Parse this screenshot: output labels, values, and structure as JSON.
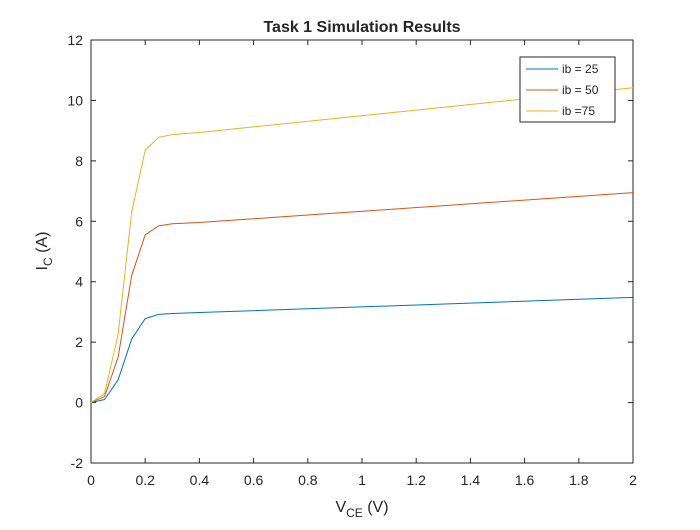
{
  "chart_data": {
    "type": "line",
    "title": "Task 1 Simulation Results",
    "xlabel": {
      "main": "V",
      "sub": "CE",
      "unit": " (V)"
    },
    "ylabel": {
      "main": "I",
      "sub": "C",
      "unit": " (A)"
    },
    "xlim": [
      0,
      2
    ],
    "ylim": [
      -2,
      12
    ],
    "xticks": [
      0,
      0.2,
      0.4,
      0.6,
      0.8,
      1,
      1.2,
      1.4,
      1.6,
      1.8,
      2
    ],
    "xtick_labels": [
      "0",
      "0.2",
      "0.4",
      "0.6",
      "0.8",
      "1",
      "1.2",
      "1.4",
      "1.6",
      "1.8",
      "2"
    ],
    "yticks": [
      -2,
      0,
      2,
      4,
      6,
      8,
      10,
      12
    ],
    "ytick_labels": [
      "-2",
      "0",
      "2",
      "4",
      "6",
      "8",
      "10",
      "12"
    ],
    "grid": false,
    "legend_position": "top-right",
    "x": [
      0,
      0.05,
      0.1,
      0.15,
      0.2,
      0.25,
      0.3,
      0.4,
      2
    ],
    "series": [
      {
        "name": "ib = 25",
        "color": "#0072bd",
        "values": [
          0,
          0.1,
          0.75,
          2.1,
          2.78,
          2.92,
          2.95,
          2.98,
          3.48
        ]
      },
      {
        "name": "ib = 50",
        "color": "#d95319",
        "values": [
          0,
          0.2,
          1.5,
          4.2,
          5.55,
          5.85,
          5.92,
          5.96,
          6.95
        ]
      },
      {
        "name": "ib =75",
        "color": "#edb120",
        "values": [
          0,
          0.3,
          2.25,
          6.3,
          8.35,
          8.78,
          8.87,
          8.94,
          10.42
        ]
      }
    ]
  }
}
